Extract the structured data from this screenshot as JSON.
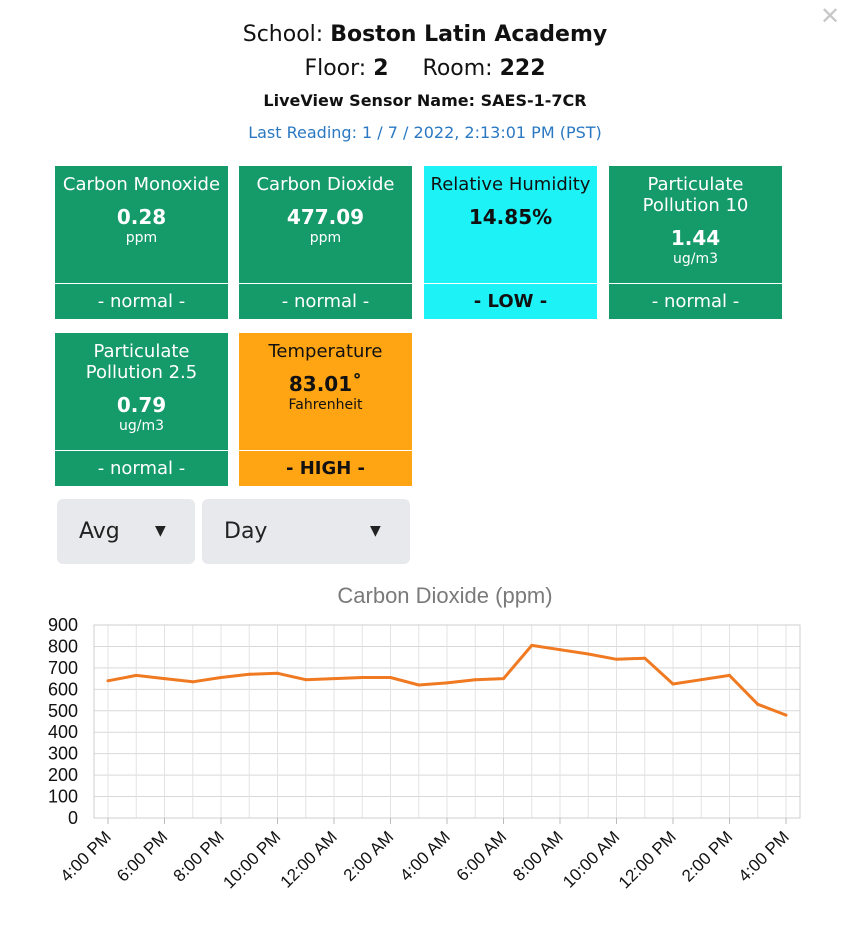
{
  "header": {
    "school_label": "School:",
    "school_name": "Boston Latin Academy",
    "floor_label": "Floor:",
    "floor_value": "2",
    "room_label": "Room:",
    "room_value": "222",
    "sensor_label": "LiveView Sensor Name:",
    "sensor_value": "SAES-1-7CR",
    "last_reading": "Last Reading: 1 / 7 / 2022, 2:13:01 PM (PST)"
  },
  "close_icon": "close-icon",
  "tiles": [
    {
      "name": "Carbon Monoxide",
      "value": "0.28",
      "unit": "ppm",
      "status": "- normal -",
      "color": "#159a6a"
    },
    {
      "name": "Carbon Dioxide",
      "value": "477.09",
      "unit": "ppm",
      "status": "- normal -",
      "color": "#159a6a"
    },
    {
      "name": "Relative Humidity",
      "value": "14.85%",
      "unit": "",
      "status": "- LOW -",
      "color": "#1df2f7"
    },
    {
      "name": "Particulate Pollution 10",
      "value": "1.44",
      "unit": "ug/m3",
      "status": "- normal -",
      "color": "#159a6a"
    },
    {
      "name": "Particulate Pollution 2.5",
      "value": "0.79",
      "unit": "ug/m3",
      "status": "- normal -",
      "color": "#159a6a"
    },
    {
      "name": "Temperature",
      "value": "83.01˚",
      "unit": "Fahrenheit",
      "status": "- HIGH -",
      "color": "#ffa514"
    }
  ],
  "controls": {
    "aggregate_selected": "Avg",
    "range_selected": "Day",
    "caret_icon": "caret-down-icon"
  },
  "chart_data": {
    "type": "line",
    "title": "Carbon Dioxide (ppm)",
    "xlabel": "",
    "ylabel": "",
    "ylim": [
      0,
      900
    ],
    "yticks": [
      "0",
      "100",
      "200",
      "300",
      "400",
      "500",
      "600",
      "700",
      "800",
      "900"
    ],
    "xticks": [
      "4:00 PM",
      "6:00 PM",
      "8:00 PM",
      "10:00 PM",
      "12:00 AM",
      "2:00 AM",
      "4:00 AM",
      "6:00 AM",
      "8:00 AM",
      "10:00 AM",
      "12:00 PM",
      "2:00 PM",
      "4:00 PM"
    ],
    "grid": true,
    "color": "#f07a22",
    "series": [
      {
        "x": [
          0,
          1,
          2,
          3,
          4,
          5,
          6,
          7,
          8,
          9,
          10,
          11,
          12,
          13,
          14,
          15,
          16,
          17,
          18,
          19,
          20,
          21,
          22,
          23,
          24
        ],
        "values": [
          640,
          665,
          650,
          635,
          655,
          670,
          675,
          645,
          650,
          655,
          655,
          620,
          630,
          645,
          650,
          805,
          785,
          765,
          740,
          745,
          625,
          645,
          665,
          530,
          480
        ]
      }
    ]
  }
}
